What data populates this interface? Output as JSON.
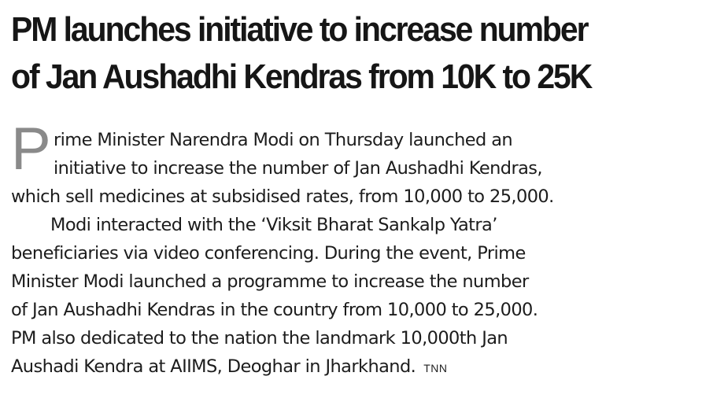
{
  "article": {
    "headline_lines": [
      "PM launches initiative to increase number",
      "of Jan Aushadhi Kendras from 10K to 25K"
    ],
    "drop_cap": "P",
    "body_lines": [
      "rime Minister Narendra Modi on Thursday launched an",
      "initiative to increase the number of Jan Aushadhi Kendras,",
      "which sell medicines at subsidised rates, from 10,000 to 25,000.",
      "Modi interacted with the ‘Viksit Bharat Sankalp Yatra’",
      "beneficiaries via video conferencing. During the event, Prime",
      "Minister Modi launched a programme to increase the number",
      "of Jan Aushadhi Kendras in the country from 10,000 to 25,000.",
      "PM also dedicated to the nation the landmark 10,000th Jan",
      "Aushadi Kendra at AIIMS, Deoghar in Jharkhand."
    ],
    "credit": "TNN"
  }
}
